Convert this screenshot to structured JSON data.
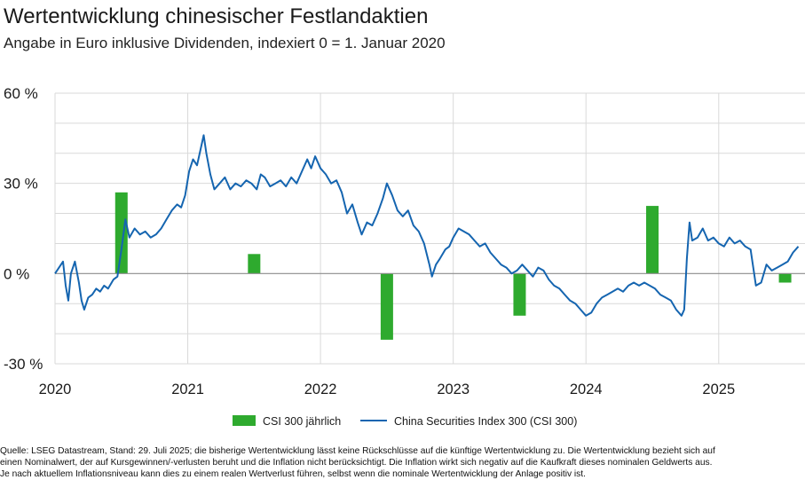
{
  "title": "Wertentwicklung chinesischer Festlandaktien",
  "subtitle": "Angabe in Euro inklusive Dividenden, indexiert 0 = 1. Januar 2020",
  "footnote": [
    "Quelle: LSEG Datastream, Stand: 29. Juli 2025; die bisherige Wertentwicklung lässt keine Rückschlüsse auf die künftige Wertentwicklung zu. Die Wertentwicklung bezieht sich auf",
    "einen Nominalwert, der auf Kursgewinnen/-verlusten beruht und die Inflation nicht berücksichtigt. Die Inflation wirkt sich negativ auf die Kaufkraft dieses nominalen Geldwerts aus.",
    "Je nach aktuellem Inflationsniveau kann dies zu einem realen Wertverlust führen, selbst wenn die nominale Wertentwicklung der Anlage positiv ist."
  ],
  "chart_data": {
    "type": "bar+line",
    "title": "Wertentwicklung chinesischer Festlandaktien",
    "subtitle": "Angabe in Euro inklusive Dividenden, indexiert 0 = 1. Januar 2020",
    "ylim": [
      -30,
      60
    ],
    "yticks": [
      60,
      30,
      0,
      -30
    ],
    "ytick_labels": [
      "60 %",
      "30 %",
      "0 %",
      "-30 %"
    ],
    "xlim": [
      2020.0,
      2025.65
    ],
    "xticks": [
      2020,
      2021,
      2022,
      2023,
      2024,
      2025
    ],
    "xtick_labels": [
      "2020",
      "2021",
      "2022",
      "2023",
      "2024",
      "2025"
    ],
    "grid": true,
    "legend_position": "bottom-center",
    "colors": {
      "bar": "#2eaa2e",
      "line": "#1565b0",
      "grid": "#d9d9d9",
      "zero": "#8c8c8c"
    },
    "bars": {
      "name": "CSI 300 jährlich",
      "x": [
        2020.5,
        2021.5,
        2022.5,
        2023.5,
        2024.5,
        2025.5
      ],
      "values": [
        27,
        6.5,
        -22,
        -14,
        22.5,
        -3
      ]
    },
    "line": {
      "name": "China Securities Index 300 (CSI 300)",
      "points": [
        [
          2020.0,
          0
        ],
        [
          2020.03,
          2
        ],
        [
          2020.06,
          4
        ],
        [
          2020.08,
          -4
        ],
        [
          2020.1,
          -9
        ],
        [
          2020.12,
          0
        ],
        [
          2020.15,
          4
        ],
        [
          2020.18,
          -3
        ],
        [
          2020.2,
          -9
        ],
        [
          2020.22,
          -12
        ],
        [
          2020.25,
          -8
        ],
        [
          2020.28,
          -7
        ],
        [
          2020.31,
          -5
        ],
        [
          2020.34,
          -6
        ],
        [
          2020.37,
          -4
        ],
        [
          2020.4,
          -5
        ],
        [
          2020.44,
          -2
        ],
        [
          2020.47,
          -1
        ],
        [
          2020.5,
          8
        ],
        [
          2020.53,
          18
        ],
        [
          2020.56,
          12
        ],
        [
          2020.6,
          15
        ],
        [
          2020.64,
          13
        ],
        [
          2020.68,
          14
        ],
        [
          2020.72,
          12
        ],
        [
          2020.76,
          13
        ],
        [
          2020.8,
          15
        ],
        [
          2020.84,
          18
        ],
        [
          2020.88,
          21
        ],
        [
          2020.92,
          23
        ],
        [
          2020.95,
          22
        ],
        [
          2020.98,
          26
        ],
        [
          2021.01,
          34
        ],
        [
          2021.04,
          38
        ],
        [
          2021.07,
          36
        ],
        [
          2021.1,
          42
        ],
        [
          2021.12,
          46
        ],
        [
          2021.14,
          40
        ],
        [
          2021.17,
          33
        ],
        [
          2021.2,
          28
        ],
        [
          2021.24,
          30
        ],
        [
          2021.28,
          32
        ],
        [
          2021.32,
          28
        ],
        [
          2021.36,
          30
        ],
        [
          2021.4,
          29
        ],
        [
          2021.44,
          31
        ],
        [
          2021.48,
          30
        ],
        [
          2021.52,
          28
        ],
        [
          2021.55,
          33
        ],
        [
          2021.58,
          32
        ],
        [
          2021.62,
          29
        ],
        [
          2021.66,
          30
        ],
        [
          2021.7,
          31
        ],
        [
          2021.74,
          29
        ],
        [
          2021.78,
          32
        ],
        [
          2021.82,
          30
        ],
        [
          2021.86,
          34
        ],
        [
          2021.9,
          38
        ],
        [
          2021.93,
          35
        ],
        [
          2021.96,
          39
        ],
        [
          2022.0,
          35
        ],
        [
          2022.04,
          33
        ],
        [
          2022.08,
          30
        ],
        [
          2022.12,
          31
        ],
        [
          2022.16,
          27
        ],
        [
          2022.2,
          20
        ],
        [
          2022.24,
          23
        ],
        [
          2022.28,
          17
        ],
        [
          2022.31,
          13
        ],
        [
          2022.35,
          17
        ],
        [
          2022.39,
          16
        ],
        [
          2022.43,
          20
        ],
        [
          2022.47,
          25
        ],
        [
          2022.5,
          30
        ],
        [
          2022.54,
          26
        ],
        [
          2022.58,
          21
        ],
        [
          2022.62,
          19
        ],
        [
          2022.66,
          21
        ],
        [
          2022.7,
          16
        ],
        [
          2022.74,
          14
        ],
        [
          2022.78,
          10
        ],
        [
          2022.82,
          3
        ],
        [
          2022.84,
          -1
        ],
        [
          2022.87,
          3
        ],
        [
          2022.9,
          5
        ],
        [
          2022.94,
          8
        ],
        [
          2022.97,
          9
        ],
        [
          2023.0,
          12
        ],
        [
          2023.04,
          15
        ],
        [
          2023.08,
          14
        ],
        [
          2023.12,
          13
        ],
        [
          2023.16,
          11
        ],
        [
          2023.2,
          9
        ],
        [
          2023.24,
          10
        ],
        [
          2023.28,
          7
        ],
        [
          2023.32,
          5
        ],
        [
          2023.36,
          3
        ],
        [
          2023.4,
          2
        ],
        [
          2023.44,
          0
        ],
        [
          2023.48,
          1
        ],
        [
          2023.52,
          3
        ],
        [
          2023.56,
          1
        ],
        [
          2023.6,
          -1
        ],
        [
          2023.64,
          2
        ],
        [
          2023.68,
          1
        ],
        [
          2023.72,
          -2
        ],
        [
          2023.76,
          -4
        ],
        [
          2023.8,
          -5
        ],
        [
          2023.84,
          -7
        ],
        [
          2023.88,
          -9
        ],
        [
          2023.92,
          -10
        ],
        [
          2023.96,
          -12
        ],
        [
          2024.0,
          -14
        ],
        [
          2024.04,
          -13
        ],
        [
          2024.08,
          -10
        ],
        [
          2024.12,
          -8
        ],
        [
          2024.16,
          -7
        ],
        [
          2024.2,
          -6
        ],
        [
          2024.24,
          -5
        ],
        [
          2024.28,
          -6
        ],
        [
          2024.32,
          -4
        ],
        [
          2024.36,
          -3
        ],
        [
          2024.4,
          -4
        ],
        [
          2024.44,
          -3
        ],
        [
          2024.48,
          -4
        ],
        [
          2024.52,
          -5
        ],
        [
          2024.56,
          -7
        ],
        [
          2024.6,
          -8
        ],
        [
          2024.64,
          -9
        ],
        [
          2024.68,
          -12
        ],
        [
          2024.72,
          -14
        ],
        [
          2024.74,
          -12
        ],
        [
          2024.76,
          5
        ],
        [
          2024.78,
          17
        ],
        [
          2024.8,
          11
        ],
        [
          2024.84,
          12
        ],
        [
          2024.88,
          15
        ],
        [
          2024.92,
          11
        ],
        [
          2024.96,
          12
        ],
        [
          2025.0,
          10
        ],
        [
          2025.04,
          9
        ],
        [
          2025.08,
          12
        ],
        [
          2025.12,
          10
        ],
        [
          2025.16,
          11
        ],
        [
          2025.2,
          9
        ],
        [
          2025.24,
          8
        ],
        [
          2025.28,
          -4
        ],
        [
          2025.32,
          -3
        ],
        [
          2025.36,
          3
        ],
        [
          2025.4,
          1
        ],
        [
          2025.44,
          2
        ],
        [
          2025.48,
          3
        ],
        [
          2025.52,
          4
        ],
        [
          2025.56,
          7
        ],
        [
          2025.6,
          9
        ]
      ]
    }
  }
}
